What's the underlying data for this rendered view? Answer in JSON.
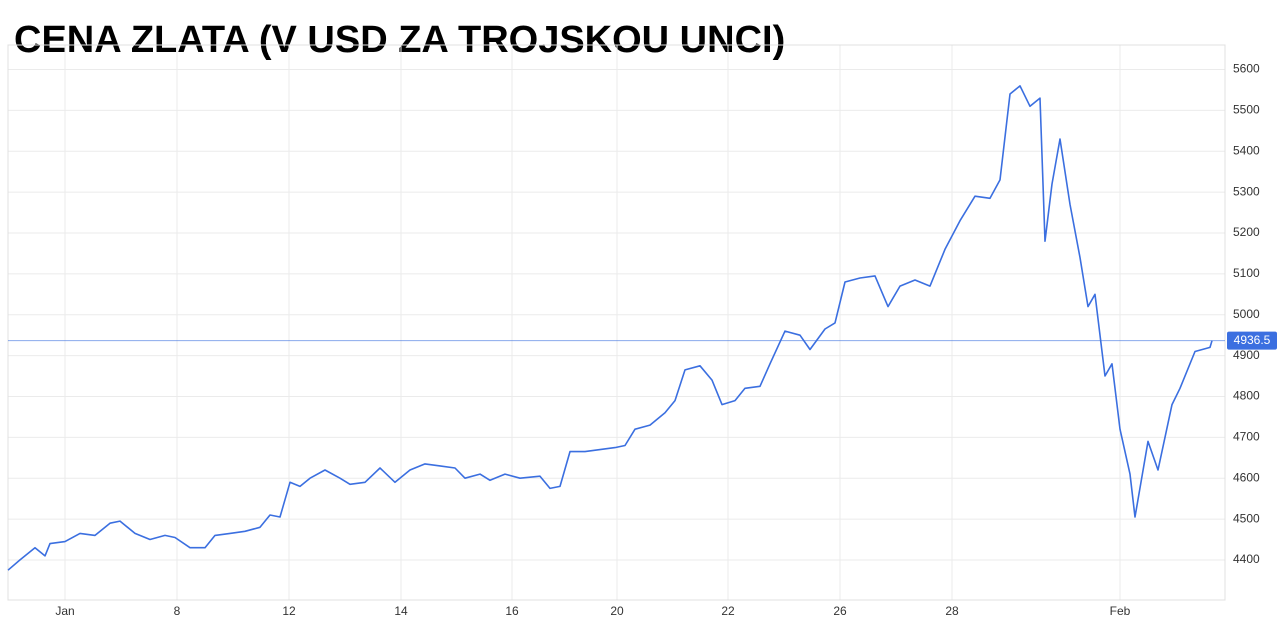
{
  "chart_data": {
    "type": "line",
    "title": "CENA ZLATA (V USD ZA TROJSKOU UNCI)",
    "x": [
      0,
      1.2,
      2.7,
      3.7,
      4.2,
      5.7,
      7.2,
      8.7,
      10.2,
      11.2,
      12.7,
      14.2,
      15.7,
      16.7,
      18.2,
      19.7,
      20.7,
      22.2,
      23.7,
      25.2,
      26.2,
      27.2,
      28.2,
      29.2,
      30.2,
      31.7,
      33.2,
      34.2,
      35.7,
      37.2,
      38.7,
      40.2,
      41.7,
      43.2,
      44.7,
      45.7,
      47.2,
      48.2,
      49.7,
      51.2,
      53.2,
      54.2,
      55.2,
      56.2,
      57.7,
      59.2,
      60.7,
      61.7,
      62.7,
      64.2,
      65.7,
      66.7,
      67.7,
      69.2,
      70.4,
      71.4,
      72.7,
      73.7,
      75.2,
      76.2,
      77.7,
      79.2,
      80.2,
      81.7,
      82.7,
      83.7,
      85.2,
      86.7,
      88,
      89.2,
      90.7,
      92.2,
      93.7,
      95.2,
      96.7,
      98.2,
      99.2,
      100.2,
      101.2,
      102.2,
      103.2,
      103.7,
      104.4,
      105.2,
      106.2,
      107.2,
      108,
      108.7,
      109.7,
      110.4,
      111.2,
      112.2,
      112.7,
      114,
      115,
      115.7,
      116.4,
      117.2,
      118.7,
      120.2,
      120.4
    ],
    "series": [
      {
        "color": "#3b6fe0",
        "values": [
          4375,
          4400,
          4430,
          4410,
          4440,
          4445,
          4465,
          4460,
          4490,
          4495,
          4465,
          4450,
          4460,
          4455,
          4430,
          4430,
          4460,
          4465,
          4470,
          4480,
          4510,
          4505,
          4590,
          4580,
          4600,
          4620,
          4600,
          4585,
          4590,
          4625,
          4590,
          4620,
          4635,
          4630,
          4625,
          4600,
          4610,
          4595,
          4610,
          4600,
          4605,
          4575,
          4580,
          4665,
          4665,
          4670,
          4675,
          4680,
          4720,
          4730,
          4760,
          4790,
          4865,
          4875,
          4840,
          4780,
          4790,
          4820,
          4825,
          4880,
          4960,
          4950,
          4915,
          4965,
          4980,
          5080,
          5090,
          5095,
          5020,
          5070,
          5085,
          5070,
          5160,
          5230,
          5290,
          5285,
          5330,
          5540,
          5560,
          5510,
          5530,
          5180,
          5320,
          5430,
          5270,
          5140,
          5020,
          5050,
          4850,
          4880,
          4720,
          4610,
          4505,
          4690,
          4620,
          4700,
          4780,
          4820,
          4910,
          4920,
          4936.5
        ]
      }
    ],
    "xlim": [
      0,
      121.7
    ],
    "ylim": [
      4302,
      5660
    ],
    "xticks": [
      {
        "value": 5.7,
        "label": "Jan"
      },
      {
        "value": 16.9,
        "label": "8"
      },
      {
        "value": 28.1,
        "label": "12"
      },
      {
        "value": 39.3,
        "label": "14"
      },
      {
        "value": 50.4,
        "label": "16"
      },
      {
        "value": 60.9,
        "label": "20"
      },
      {
        "value": 72,
        "label": "22"
      },
      {
        "value": 83.2,
        "label": "26"
      },
      {
        "value": 94.4,
        "label": "28"
      },
      {
        "value": 111.2,
        "label": "Feb"
      }
    ],
    "yticks": [
      4400,
      4500,
      4600,
      4700,
      4800,
      4900,
      5000,
      5100,
      5200,
      5300,
      5400,
      5500,
      5600
    ],
    "grid": true
  }
}
